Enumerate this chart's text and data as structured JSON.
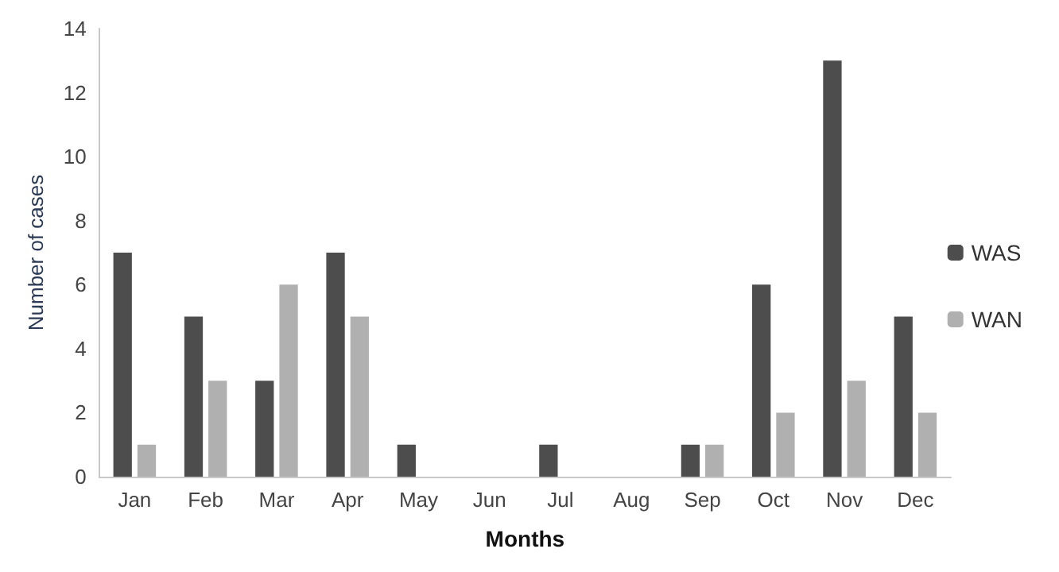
{
  "chart_data": {
    "type": "bar",
    "xlabel": "Months",
    "ylabel": "Number of cases",
    "categories": [
      "Jan",
      "Feb",
      "Mar",
      "Apr",
      "May",
      "Jun",
      "Jul",
      "Aug",
      "Sep",
      "Oct",
      "Nov",
      "Dec"
    ],
    "series": [
      {
        "name": "WAS",
        "color": "#4d4d4d",
        "values": [
          7,
          5,
          3,
          7,
          1,
          0,
          1,
          0,
          1,
          6,
          13,
          5
        ]
      },
      {
        "name": "WAN",
        "color": "#b0b0b0",
        "values": [
          1,
          3,
          6,
          5,
          0,
          0,
          0,
          0,
          1,
          2,
          3,
          2
        ]
      }
    ],
    "ylim": [
      0,
      14
    ],
    "yticks": [
      0,
      2,
      4,
      6,
      8,
      10,
      12,
      14
    ],
    "grid": false,
    "legend": "right"
  }
}
